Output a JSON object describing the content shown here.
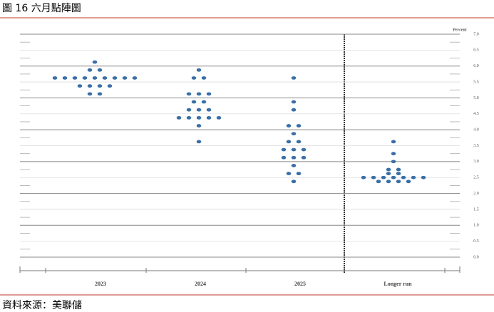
{
  "caption": "圖 16 六月點陣圖",
  "source": "資料來源：美聯儲",
  "chart_data": {
    "type": "dot",
    "y_label": "Percent",
    "categories": [
      "2023",
      "2024",
      "2025",
      "Longer run"
    ],
    "color": "#3a6fa6",
    "values": [
      [
        6.125,
        5.875,
        5.875,
        5.625,
        5.625,
        5.625,
        5.625,
        5.625,
        5.625,
        5.625,
        5.625,
        5.625,
        5.375,
        5.375,
        5.375,
        5.375,
        5.125,
        5.125
      ],
      [
        5.875,
        5.625,
        5.625,
        5.125,
        5.125,
        5.125,
        4.875,
        4.875,
        4.625,
        4.625,
        4.625,
        4.375,
        4.375,
        4.375,
        4.375,
        4.375,
        4.125,
        3.625
      ],
      [
        5.625,
        4.875,
        4.625,
        4.125,
        4.125,
        3.875,
        3.625,
        3.625,
        3.375,
        3.375,
        3.375,
        3.125,
        3.125,
        3.125,
        2.875,
        2.625,
        2.625,
        2.375
      ],
      [
        3.625,
        3.25,
        3.0,
        2.75,
        2.75,
        2.625,
        2.625,
        2.5,
        2.5,
        2.5,
        2.5,
        2.5,
        2.5,
        2.5,
        2.375,
        2.375,
        2.375,
        2.375
      ]
    ],
    "ylim": [
      0,
      7
    ],
    "yticks": [
      {
        "value": 0,
        "label": "0.0"
      },
      0.5,
      {
        "value": 1,
        "label": "1.0"
      },
      1.5,
      {
        "value": 2,
        "label": "2.0"
      },
      2.5,
      {
        "value": 3,
        "label": "3.0"
      },
      3.5,
      {
        "value": 4,
        "label": "4.0"
      },
      4.5,
      {
        "value": 5,
        "label": "5.0"
      },
      5.5,
      {
        "value": 6,
        "label": "6.0"
      },
      6.5,
      {
        "value": 7,
        "label": "7.0"
      }
    ],
    "grid": true
  }
}
